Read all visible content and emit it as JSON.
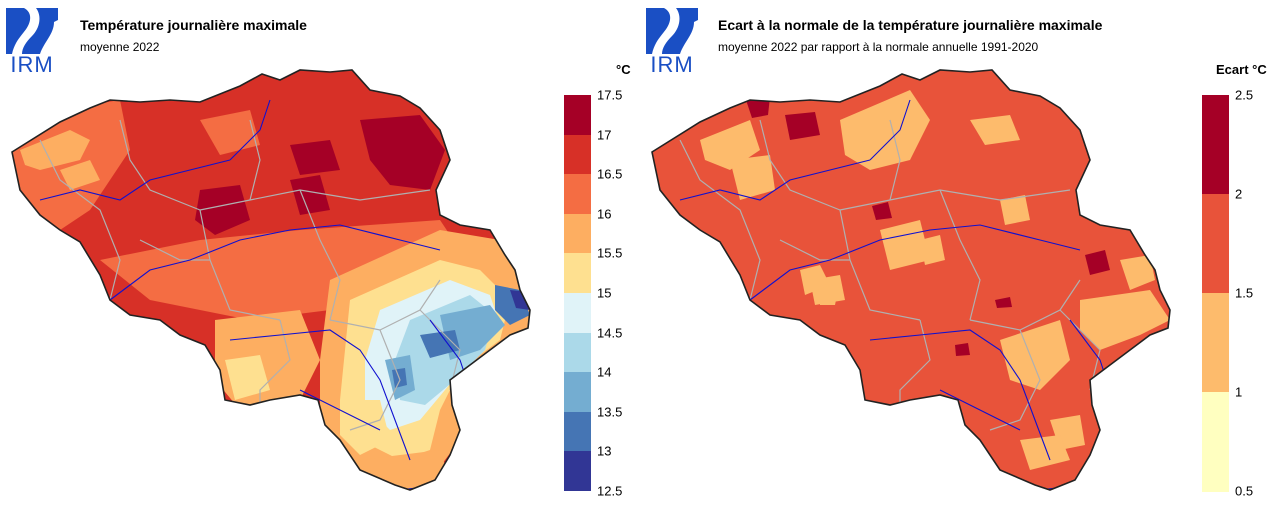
{
  "logo": {
    "text": "IRM",
    "color": "#1a4fc4"
  },
  "panels": {
    "left": {
      "title": "Température journalière maximale",
      "subtitle": "moyenne 2022",
      "legend": {
        "unit": "°C",
        "ticks": [
          "17.5",
          "17",
          "16.5",
          "16",
          "15.5",
          "15",
          "14.5",
          "14",
          "13.5",
          "13",
          "12.5"
        ],
        "colors": [
          "#a50026",
          "#d73027",
          "#f46d43",
          "#fdae61",
          "#fee090",
          "#e0f3f8",
          "#abd9e9",
          "#74add1",
          "#4575b4",
          "#313695"
        ]
      }
    },
    "right": {
      "title": "Ecart à la normale de la température journalière maximale",
      "subtitle": "moyenne 2022 par rapport à la normale annuelle 1991-2020",
      "legend": {
        "unit": "Ecart °C",
        "ticks": [
          "2.5",
          "2",
          "1.5",
          "1",
          "0.5"
        ],
        "colors": [
          "#a50026",
          "#e8533a",
          "#fdbb6c",
          "#ffffc0"
        ]
      }
    }
  },
  "map_style": {
    "border_color": "#222222",
    "province_border_color": "#b0b0b0",
    "river_color": "#1010d0"
  }
}
